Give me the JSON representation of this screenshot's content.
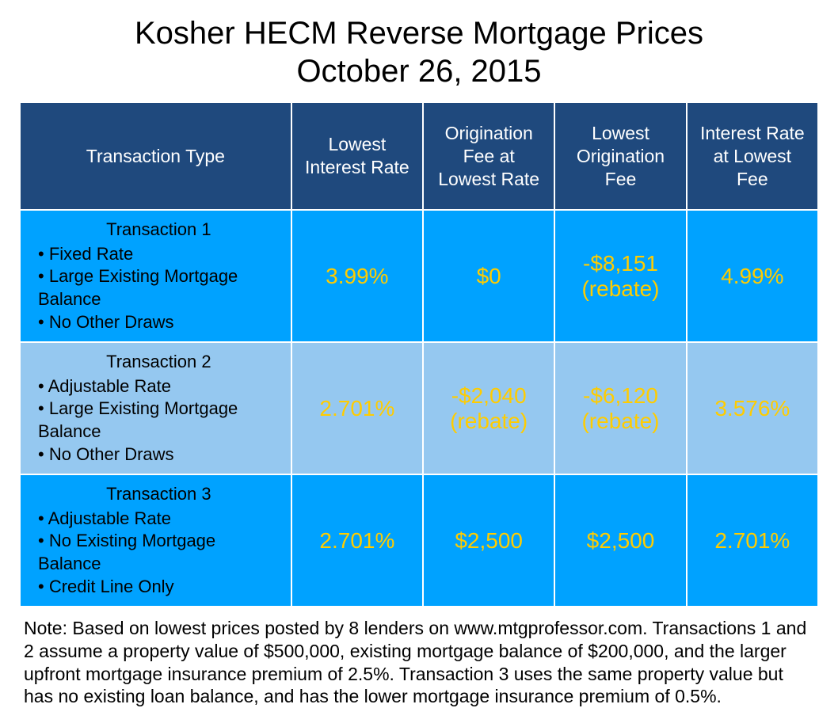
{
  "title_line1": "Kosher HECM Reverse Mortgage Prices",
  "title_line2": "October 26, 2015",
  "colors": {
    "header_bg": "#1f497d",
    "row_a_bg": "#00a2ff",
    "row_b_bg": "#95c8f0",
    "value_text": "#ffcc00",
    "body_text": "#000000",
    "header_text": "#ffffff",
    "border": "#ffffff",
    "page_bg": "#ffffff"
  },
  "columns": [
    "Transaction Type",
    "Lowest Interest Rate",
    "Origination Fee at Lowest Rate",
    "Lowest Origination Fee",
    "Interest Rate at Lowest Fee"
  ],
  "rows": [
    {
      "title": "Transaction 1",
      "bullets": [
        "Fixed Rate",
        "Large Existing Mortgage Balance",
        "No Other Draws"
      ],
      "lowest_rate": "3.99%",
      "orig_fee_at_lowest_rate": "$0",
      "lowest_orig_fee": "-$8,151 (rebate)",
      "rate_at_lowest_fee": "4.99%"
    },
    {
      "title": "Transaction 2",
      "bullets": [
        "Adjustable Rate",
        "Large Existing Mortgage Balance",
        "No Other Draws"
      ],
      "lowest_rate": "2.701%",
      "orig_fee_at_lowest_rate": "-$2,040 (rebate)",
      "lowest_orig_fee": "-$6,120 (rebate)",
      "rate_at_lowest_fee": "3.576%"
    },
    {
      "title": "Transaction 3",
      "bullets": [
        "Adjustable Rate",
        "No Existing Mortgage Balance",
        "Credit Line Only"
      ],
      "lowest_rate": "2.701%",
      "orig_fee_at_lowest_rate": "$2,500",
      "lowest_orig_fee": "$2,500",
      "rate_at_lowest_fee": "2.701%"
    }
  ],
  "note": "Note: Based on lowest prices posted by 8 lenders on www.mtgprofessor.com. Transactions 1 and 2 assume a property value of $500,000, existing mortgage balance of $200,000, and the larger upfront mortgage insurance premium of 2.5%. Transaction 3 uses the same property value but has no existing loan balance, and has the lower mortgage insurance premium of 0.5%."
}
